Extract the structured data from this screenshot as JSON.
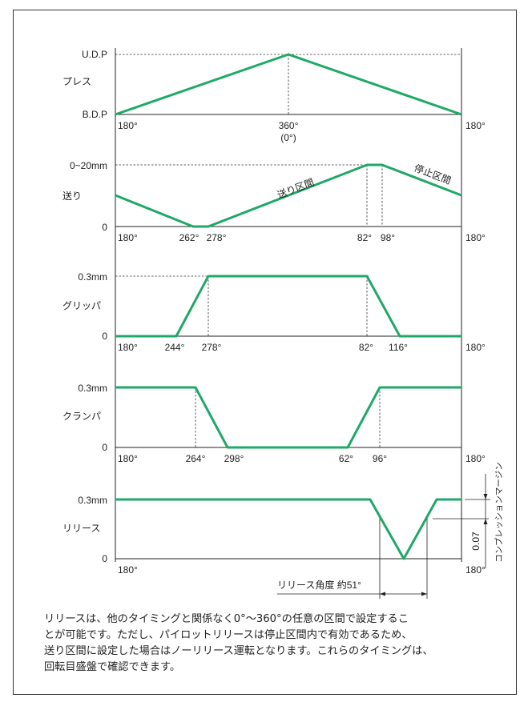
{
  "panels": {
    "press": {
      "label": "プレス",
      "y_top_label": "U.D.P",
      "y_bottom_label": "B.D.P",
      "x_labels": [
        "180°",
        "360°",
        "(0°)",
        "180°"
      ]
    },
    "feed": {
      "label": "送り",
      "y_top_label": "0~20mm",
      "y_bottom_label": "0",
      "x_labels": [
        "180°",
        "262°",
        "278°",
        "82°",
        "98°",
        "180°"
      ],
      "annotation_feed": "送り区間",
      "annotation_stop": "停止区間"
    },
    "gripper": {
      "label": "グリッパ",
      "y_top_label": "0.3mm",
      "y_bottom_label": "0",
      "x_labels": [
        "180°",
        "244°",
        "278°",
        "82°",
        "116°",
        "180°"
      ]
    },
    "clamp": {
      "label": "クランパ",
      "y_top_label": "0.3mm",
      "y_bottom_label": "0",
      "x_labels": [
        "180°",
        "264°",
        "298°",
        "62°",
        "96°",
        "180°"
      ]
    },
    "release": {
      "label": "リリース",
      "y_top_label": "0.3mm",
      "y_bottom_label": "0",
      "x_labels": [
        "180°",
        "180°"
      ],
      "angle_label": "リリース角度 約51°",
      "margin_value": "0.07",
      "margin_label": "コンプレッションマージン"
    }
  },
  "note": {
    "lines": [
      "リリースは、他のタイミングと関係なく0°〜360°の任意の区間で設定するこ",
      "とが可能です。ただし、パイロットリリースは停止区間内で有効であるため、",
      "送り区間に設定した場合はノーリリース運転となります。これらのタイミングは、",
      "回転目盛盤で確認できます。"
    ]
  },
  "colors": {
    "line": "#1fa868",
    "axis": "#222222",
    "frame": "#333333"
  }
}
